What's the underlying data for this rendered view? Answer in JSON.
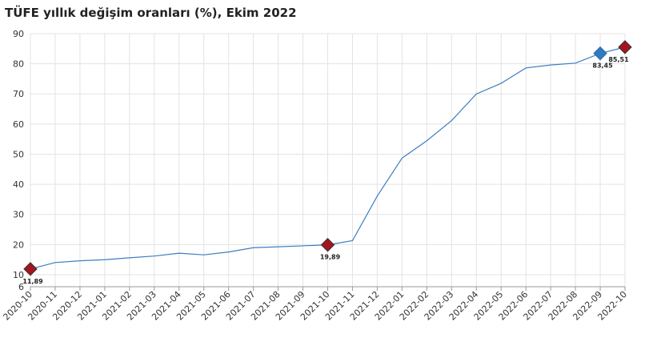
{
  "chart_data": {
    "type": "line",
    "title": "TÜFE yıllık değişim oranları (%), Ekim 2022",
    "categories": [
      "2020-10",
      "2020-11",
      "2020-12",
      "2021-01",
      "2021-02",
      "2021-03",
      "2021-04",
      "2021-05",
      "2021-06",
      "2021-07",
      "2021-08",
      "2021-09",
      "2021-10",
      "2021-11",
      "2021-12",
      "2022-01",
      "2022-02",
      "2022-03",
      "2022-04",
      "2022-05",
      "2022-06",
      "2022-07",
      "2022-08",
      "2022-09",
      "2022-10"
    ],
    "series": [
      {
        "name": "TÜFE",
        "color": "#3a7fc1",
        "values": [
          11.89,
          14.03,
          14.6,
          14.97,
          15.61,
          16.19,
          17.14,
          16.59,
          17.53,
          18.95,
          19.25,
          19.58,
          19.89,
          21.31,
          36.08,
          48.69,
          54.44,
          61.14,
          69.97,
          73.5,
          78.62,
          79.6,
          80.21,
          83.45,
          85.51
        ],
        "value_labels": [
          "11,89",
          null,
          null,
          null,
          null,
          null,
          null,
          null,
          null,
          null,
          null,
          null,
          "19,89",
          null,
          null,
          null,
          null,
          null,
          null,
          null,
          null,
          null,
          null,
          "83,45",
          "85,51"
        ],
        "marker_colors": [
          "#a5151f",
          null,
          null,
          null,
          null,
          null,
          null,
          null,
          null,
          null,
          null,
          null,
          "#a5151f",
          null,
          null,
          null,
          null,
          null,
          null,
          null,
          null,
          null,
          null,
          "#2f7bc0",
          "#a5151f"
        ]
      }
    ],
    "ylim": [
      6,
      90
    ],
    "yticks": [
      6,
      10,
      20,
      30,
      40,
      50,
      60,
      70,
      80,
      90
    ],
    "grid": true
  }
}
